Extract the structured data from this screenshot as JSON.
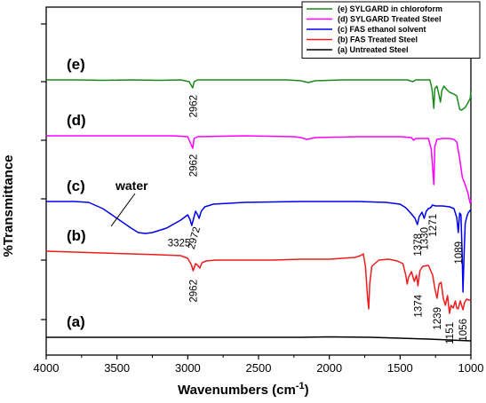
{
  "chart_data": {
    "type": "line",
    "title": "",
    "xlabel": "Wavenumbers (cm",
    "xlabel_superscript": "-1",
    "xlabel_suffix": ")",
    "ylabel": "%Transmittance",
    "xlim": [
      4000,
      1000
    ],
    "x_reversed": true,
    "x_ticks": [
      4000,
      3500,
      3000,
      2500,
      2000,
      1500,
      1000
    ],
    "y_ticks_labeled": false,
    "grid": false,
    "legend_position": "top-right",
    "legend": [
      {
        "label": "(e) SYLGARD in chloroform",
        "color": "#1a8a1a"
      },
      {
        "label": "(d) SYLGARD Treated Steel",
        "color": "#ff00ff"
      },
      {
        "label": "(c) FAS ethanol solvent",
        "color": "#0000ee"
      },
      {
        "label": "(b) FAS Treated Steel",
        "color": "#ee1c1c"
      },
      {
        "label": "(a) Untreated Steel",
        "color": "#000000"
      }
    ],
    "series": [
      {
        "name": "(e) SYLGARD in chloroform",
        "curve_label": "(e)",
        "color": "#1a8a1a",
        "points": [
          [
            4000,
            90
          ],
          [
            3800,
            90
          ],
          [
            3600,
            90.5
          ],
          [
            3400,
            90
          ],
          [
            3200,
            90.5
          ],
          [
            3050,
            90
          ],
          [
            2990,
            92
          ],
          [
            2965,
            99
          ],
          [
            2955,
            92
          ],
          [
            2930,
            90
          ],
          [
            2600,
            90
          ],
          [
            2300,
            90
          ],
          [
            2200,
            91
          ],
          [
            2150,
            93
          ],
          [
            2100,
            91
          ],
          [
            1900,
            90
          ],
          [
            1600,
            90
          ],
          [
            1450,
            90
          ],
          [
            1410,
            92
          ],
          [
            1390,
            90
          ],
          [
            1290,
            90
          ],
          [
            1275,
            100
          ],
          [
            1262,
            122
          ],
          [
            1255,
            100
          ],
          [
            1240,
            97
          ],
          [
            1230,
            104
          ],
          [
            1215,
            115
          ],
          [
            1205,
            102
          ],
          [
            1190,
            97
          ],
          [
            1170,
            101
          ],
          [
            1150,
            104
          ],
          [
            1120,
            106
          ],
          [
            1100,
            108
          ],
          [
            1080,
            123
          ],
          [
            1065,
            124
          ],
          [
            1040,
            121
          ],
          [
            1025,
            117
          ],
          [
            1015,
            114
          ],
          [
            1005,
            111
          ],
          [
            1000,
            103
          ]
        ],
        "peak_labels": [
          {
            "text": "2962",
            "x": 2962
          }
        ]
      },
      {
        "name": "(d) SYLGARD Treated Steel",
        "curve_label": "(d)",
        "color": "#ff00ff",
        "points": [
          [
            4000,
            153
          ],
          [
            3600,
            153
          ],
          [
            3300,
            153
          ],
          [
            3100,
            153
          ],
          [
            3000,
            154
          ],
          [
            2965,
            167
          ],
          [
            2955,
            156
          ],
          [
            2930,
            154
          ],
          [
            2600,
            153
          ],
          [
            2250,
            154
          ],
          [
            2200,
            155
          ],
          [
            2160,
            157
          ],
          [
            2100,
            155
          ],
          [
            1800,
            154
          ],
          [
            1500,
            154
          ],
          [
            1420,
            155
          ],
          [
            1405,
            158
          ],
          [
            1390,
            156
          ],
          [
            1300,
            156
          ],
          [
            1280,
            168
          ],
          [
            1262,
            208
          ],
          [
            1255,
            165
          ],
          [
            1240,
            157
          ],
          [
            1200,
            156
          ],
          [
            1150,
            156
          ],
          [
            1120,
            157
          ],
          [
            1100,
            160
          ],
          [
            1080,
            178
          ],
          [
            1060,
            200
          ],
          [
            1040,
            208
          ],
          [
            1020,
            218
          ],
          [
            1010,
            226
          ],
          [
            1005,
            229
          ],
          [
            1000,
            225
          ]
        ],
        "peak_labels": [
          {
            "text": "2962",
            "x": 2962
          }
        ]
      },
      {
        "name": "(c) FAS ethanol solvent",
        "curve_label": "(c)",
        "color": "#0000ee",
        "points": [
          [
            4000,
            227
          ],
          [
            3800,
            227
          ],
          [
            3700,
            228
          ],
          [
            3600,
            235
          ],
          [
            3500,
            246
          ],
          [
            3400,
            257
          ],
          [
            3350,
            262
          ],
          [
            3300,
            263
          ],
          [
            3250,
            262
          ],
          [
            3150,
            257
          ],
          [
            3050,
            248
          ],
          [
            3000,
            242
          ],
          [
            2985,
            247
          ],
          [
            2972,
            254
          ],
          [
            2960,
            247
          ],
          [
            2945,
            238
          ],
          [
            2930,
            242
          ],
          [
            2920,
            246
          ],
          [
            2905,
            238
          ],
          [
            2880,
            233
          ],
          [
            2820,
            230
          ],
          [
            2600,
            228
          ],
          [
            2200,
            227
          ],
          [
            1800,
            227
          ],
          [
            1600,
            228
          ],
          [
            1500,
            230
          ],
          [
            1460,
            234
          ],
          [
            1420,
            241
          ],
          [
            1395,
            246
          ],
          [
            1378,
            253
          ],
          [
            1365,
            244
          ],
          [
            1345,
            239
          ],
          [
            1330,
            246
          ],
          [
            1315,
            238
          ],
          [
            1300,
            235
          ],
          [
            1285,
            234
          ],
          [
            1271,
            231
          ],
          [
            1250,
            232
          ],
          [
            1200,
            232
          ],
          [
            1150,
            233
          ],
          [
            1120,
            235
          ],
          [
            1100,
            245
          ],
          [
            1089,
            262
          ],
          [
            1080,
            240
          ],
          [
            1070,
            242
          ],
          [
            1063,
            280
          ],
          [
            1056,
            329
          ],
          [
            1048,
            285
          ],
          [
            1040,
            252
          ],
          [
            1030,
            245
          ],
          [
            1020,
            240
          ],
          [
            1010,
            238
          ],
          [
            1000,
            236
          ]
        ],
        "peak_labels": [
          {
            "text": "3325",
            "x": 3325
          },
          {
            "text": "2972",
            "x": 2972
          },
          {
            "text": "1378",
            "x": 1378
          },
          {
            "text": "1330",
            "x": 1330
          },
          {
            "text": "1271",
            "x": 1271
          },
          {
            "text": "1089",
            "x": 1089
          }
        ]
      },
      {
        "name": "(b) FAS Treated Steel",
        "curve_label": "(b)",
        "color": "#ee1c1c",
        "points": [
          [
            4000,
            283
          ],
          [
            3800,
            284
          ],
          [
            3600,
            285
          ],
          [
            3400,
            286
          ],
          [
            3200,
            287
          ],
          [
            3050,
            288
          ],
          [
            3000,
            291
          ],
          [
            2975,
            298
          ],
          [
            2962,
            305
          ],
          [
            2945,
            297
          ],
          [
            2930,
            299
          ],
          [
            2915,
            302
          ],
          [
            2900,
            296
          ],
          [
            2870,
            294
          ],
          [
            2800,
            293
          ],
          [
            2600,
            293
          ],
          [
            2400,
            293
          ],
          [
            2200,
            292
          ],
          [
            2000,
            292
          ],
          [
            1820,
            290
          ],
          [
            1780,
            288
          ],
          [
            1760,
            286
          ],
          [
            1745,
            300
          ],
          [
            1730,
            335
          ],
          [
            1722,
            348
          ],
          [
            1715,
            320
          ],
          [
            1700,
            300
          ],
          [
            1650,
            293
          ],
          [
            1580,
            292
          ],
          [
            1520,
            294
          ],
          [
            1480,
            297
          ],
          [
            1460,
            310
          ],
          [
            1450,
            320
          ],
          [
            1440,
            312
          ],
          [
            1420,
            306
          ],
          [
            1400,
            317
          ],
          [
            1385,
            310
          ],
          [
            1374,
            322
          ],
          [
            1360,
            305
          ],
          [
            1340,
            300
          ],
          [
            1300,
            299
          ],
          [
            1270,
            310
          ],
          [
            1255,
            325
          ],
          [
            1239,
            336
          ],
          [
            1225,
            320
          ],
          [
            1210,
            318
          ],
          [
            1195,
            336
          ],
          [
            1180,
            344
          ],
          [
            1165,
            333
          ],
          [
            1151,
            353
          ],
          [
            1140,
            344
          ],
          [
            1125,
            347
          ],
          [
            1110,
            339
          ],
          [
            1100,
            347
          ],
          [
            1090,
            348
          ],
          [
            1075,
            339
          ],
          [
            1056,
            349
          ],
          [
            1045,
            341
          ],
          [
            1030,
            337
          ],
          [
            1015,
            338
          ],
          [
            1000,
            338
          ]
        ],
        "peak_labels": [
          {
            "text": "2962",
            "x": 2962
          },
          {
            "text": "1374",
            "x": 1374
          },
          {
            "text": "1239",
            "x": 1239
          },
          {
            "text": "1151",
            "x": 1151
          },
          {
            "text": "1056",
            "x": 1056
          }
        ]
      },
      {
        "name": "(a) Untreated Steel",
        "curve_label": "(a)",
        "color": "#000000",
        "points": [
          [
            4000,
            380
          ],
          [
            3700,
            380
          ],
          [
            3400,
            380
          ],
          [
            3000,
            380
          ],
          [
            2600,
            380
          ],
          [
            2200,
            380
          ],
          [
            2000,
            379.5
          ],
          [
            1700,
            380
          ],
          [
            1500,
            381
          ],
          [
            1300,
            382
          ],
          [
            1150,
            383
          ],
          [
            1000,
            384
          ]
        ]
      }
    ],
    "annotations": [
      {
        "text": "water"
      }
    ]
  }
}
